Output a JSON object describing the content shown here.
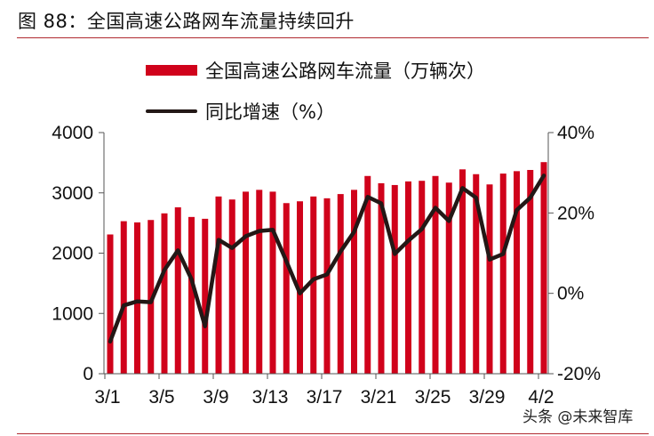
{
  "figure": {
    "title": "图 88：全国高速公路网车流量持续回升",
    "watermark": "头条 @未来智库"
  },
  "colors": {
    "bar": "#d0021b",
    "line": "#231816",
    "rule": "#b02a30",
    "axis": "#555555"
  },
  "chart_data": {
    "type": "bar+line",
    "title": "全国高速公路网车流量持续回升",
    "categories": [
      "3/1",
      "3/2",
      "3/3",
      "3/4",
      "3/5",
      "3/6",
      "3/7",
      "3/8",
      "3/9",
      "3/10",
      "3/11",
      "3/12",
      "3/13",
      "3/14",
      "3/15",
      "3/16",
      "3/17",
      "3/18",
      "3/19",
      "3/20",
      "3/21",
      "3/22",
      "3/23",
      "3/24",
      "3/25",
      "3/26",
      "3/27",
      "3/28",
      "3/29",
      "3/30",
      "3/31",
      "4/1",
      "4/2"
    ],
    "x_tick_labels": [
      "3/1",
      "3/5",
      "3/9",
      "3/13",
      "3/17",
      "3/21",
      "3/25",
      "3/29",
      "4/2"
    ],
    "series": [
      {
        "name": "全国高速公路网车流量（万辆次）",
        "type": "bar",
        "axis": "left",
        "values": [
          2310,
          2530,
          2510,
          2550,
          2660,
          2760,
          2600,
          2570,
          2940,
          2890,
          3020,
          3050,
          3020,
          2830,
          2860,
          2940,
          2910,
          2980,
          3050,
          3280,
          3160,
          3130,
          3190,
          3200,
          3280,
          3170,
          3390,
          3310,
          3140,
          3320,
          3360,
          3380,
          3510
        ]
      },
      {
        "name": "同比增速（%）",
        "type": "line",
        "axis": "right",
        "values": [
          -12.0,
          -3.0,
          -2.0,
          -2.2,
          5.8,
          10.7,
          3.5,
          -8.2,
          13.3,
          11.3,
          14.2,
          15.5,
          15.8,
          8.0,
          0.0,
          3.5,
          4.7,
          10.4,
          15.3,
          24.0,
          22.4,
          9.8,
          13.1,
          16.0,
          21.3,
          18.0,
          26.2,
          23.8,
          8.4,
          9.8,
          20.7,
          23.8,
          29.3
        ]
      }
    ],
    "left_axis": {
      "min": 0,
      "max": 4000,
      "ticks": [
        0,
        1000,
        2000,
        3000,
        4000
      ],
      "tick_labels": [
        "0",
        "1000",
        "2000",
        "3000",
        "4000"
      ]
    },
    "right_axis": {
      "min": -20,
      "max": 40,
      "ticks": [
        -20,
        0,
        20,
        40
      ],
      "tick_labels": [
        "-20%",
        "0%",
        "20%",
        "40%"
      ]
    },
    "xlabel": "",
    "ylabel": "",
    "grid": false,
    "legend_position": "top"
  },
  "legend": [
    {
      "label": "全国高速公路网车流量（万辆次）",
      "kind": "bar"
    },
    {
      "label": "同比增速（%）",
      "kind": "line"
    }
  ]
}
